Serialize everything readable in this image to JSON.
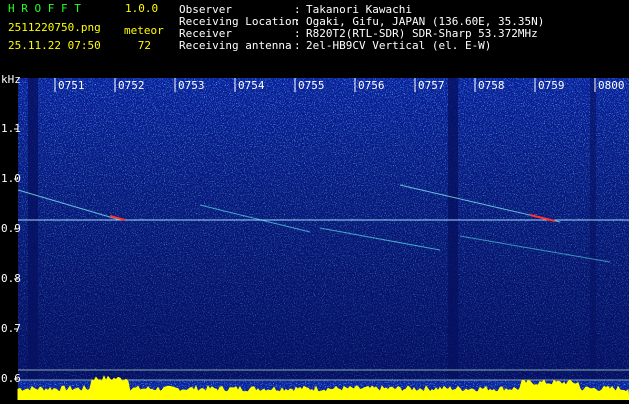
{
  "header": {
    "app": "H R O F F T",
    "version": "1.0.0",
    "file": "2511220750.png",
    "datetime": "25.11.22 07:50",
    "meteor_label": "meteor",
    "meteor_count": 72
  },
  "info": {
    "separator": ":",
    "rows": [
      {
        "label": "Observer",
        "value": "Takanori Kawachi"
      },
      {
        "label": "Receiving Location",
        "value": "Ogaki, Gifu, JAPAN (136.60E, 35.35N)"
      },
      {
        "label": "Receiver",
        "value": "R820T2(RTL-SDR) SDR-Sharp 53.372MHz"
      },
      {
        "label": "Receiving antenna",
        "value": "2el-HB9CV Vertical (el. E-W)"
      }
    ]
  },
  "spectrogram": {
    "unit": "kHz",
    "yticks": [
      1.1,
      {
        "value": 1,
        "label": "1.0"
      },
      0.9,
      0.8,
      0.7,
      0.6
    ],
    "times": [
      "0751",
      "0752",
      "0753",
      "0754",
      "0755",
      "0756",
      "0757",
      "0758",
      "0759",
      "0800"
    ]
  }
}
